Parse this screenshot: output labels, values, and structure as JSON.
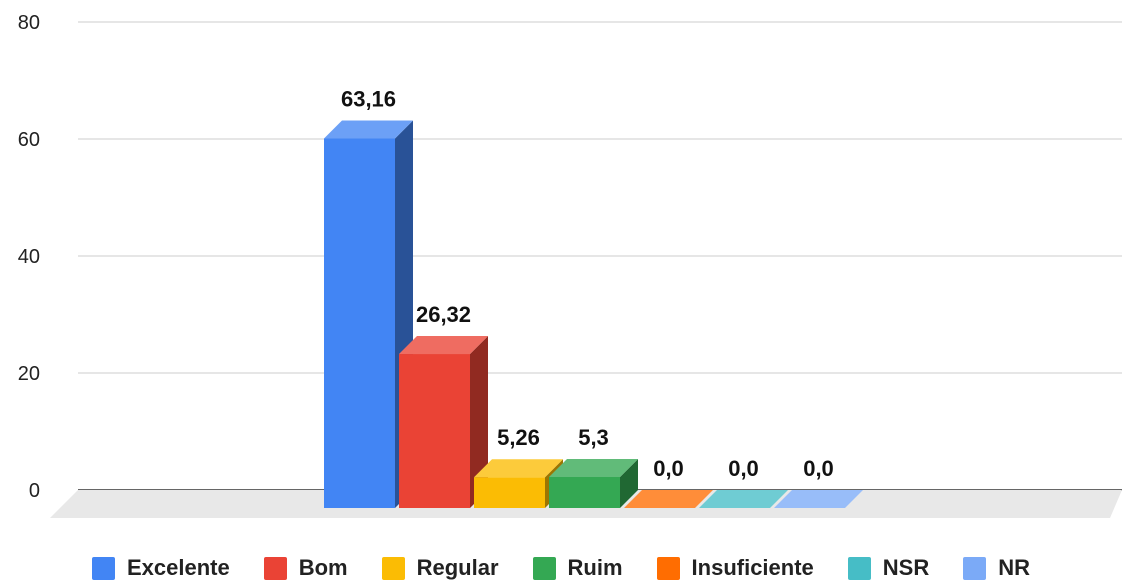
{
  "chart_data": {
    "type": "bar",
    "three_d": true,
    "categories": [
      "Excelente",
      "Bom",
      "Regular",
      "Ruim",
      "Insuficiente",
      "NSR",
      "NR"
    ],
    "values": [
      63.16,
      26.32,
      5.26,
      5.3,
      0.0,
      0.0,
      0.0
    ],
    "data_labels": [
      "63,16",
      "26,32",
      "5,26",
      "5,3",
      "0,0",
      "0,0",
      "0,0"
    ],
    "colors": [
      "#4285F4",
      "#EA4335",
      "#FBBC04",
      "#34A853",
      "#FF6D01",
      "#46BDC6",
      "#7BAAF7"
    ],
    "ylim": [
      0,
      80
    ],
    "yticks": [
      0,
      20,
      40,
      60,
      80
    ],
    "ytick_labels": [
      "0",
      "20",
      "40",
      "60",
      "80"
    ],
    "grid": true,
    "legend_position": "bottom",
    "title": "",
    "xlabel": "",
    "ylabel": ""
  }
}
